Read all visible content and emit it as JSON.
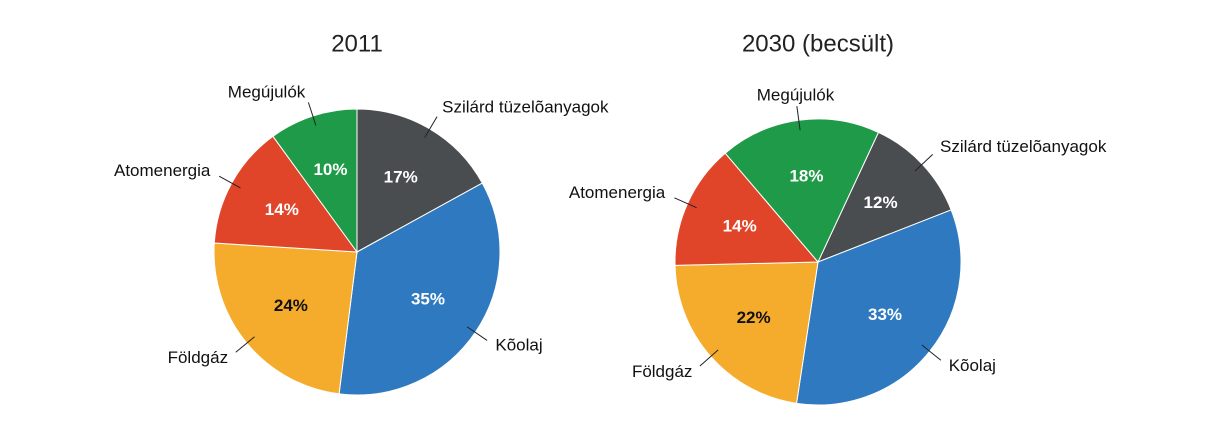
{
  "chart_data": [
    {
      "type": "pie",
      "title": "2011",
      "startangle": 0,
      "categories": [
        "Szilárd tüzelõanyagok",
        "Kõolaj",
        "Földgáz",
        "Atomenergia",
        "Megújulók"
      ],
      "values": [
        17,
        35,
        24,
        14,
        10
      ],
      "value_labels": [
        "17%",
        "35%",
        "24%",
        "14%",
        "10%"
      ],
      "colors": [
        "#4a4d50",
        "#2e79c0",
        "#f5ac2c",
        "#e0452a",
        "#1f9a48"
      ]
    },
    {
      "type": "pie",
      "title": "2030 (becsült)",
      "startangle": 25,
      "categories": [
        "Szilárd tüzelõanyagok",
        "Kõolaj",
        "Földgáz",
        "Atomenergia",
        "Megújulók"
      ],
      "values": [
        12,
        33,
        22,
        14,
        18
      ],
      "value_labels": [
        "12%",
        "33%",
        "22%",
        "14%",
        "18%"
      ],
      "colors": [
        "#4a4d50",
        "#2e79c0",
        "#f5ac2c",
        "#e0452a",
        "#1f9a48"
      ]
    }
  ]
}
